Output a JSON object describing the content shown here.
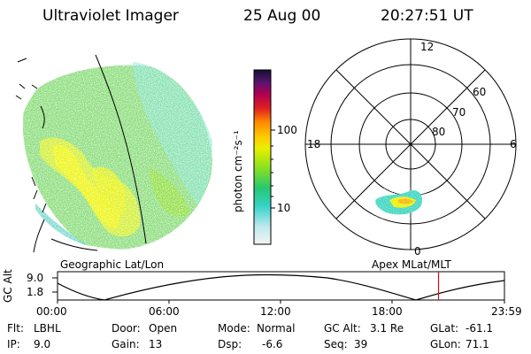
{
  "header": {
    "instrument": "Ultraviolet Imager",
    "date": "25 Aug 00",
    "time": "20:27:51 UT"
  },
  "colorbar": {
    "unit_label": "photon cm⁻²s⁻¹",
    "ticks": [
      "100",
      "10"
    ]
  },
  "polar_plot": {
    "mlt_labels": {
      "top": "12",
      "left": "18",
      "right": "6",
      "bottom": "0"
    },
    "lat_labels": [
      "60",
      "70",
      "80"
    ]
  },
  "map_labels": {
    "left": "Geographic Lat/Lon",
    "right": "Apex MLat/MLT"
  },
  "altitude_plot": {
    "ylabel": "GC Alt",
    "yticks": [
      "9.0",
      "1.8"
    ],
    "xticks": [
      "00:00",
      "06:00",
      "12:00",
      "18:00",
      "23:59"
    ],
    "current_time_hours": 20.46
  },
  "status": {
    "flt_label": "Flt:",
    "flt_value": "LBHL",
    "ip_label": "IP:",
    "ip_value": "9.0",
    "door_label": "Door:",
    "door_value": "Open",
    "gain_label": "Gain:",
    "gain_value": "13",
    "mode_label": "Mode:",
    "mode_value": "Normal",
    "dsp_label": "Dsp:",
    "dsp_value": "-6.6",
    "gcalt_label": "GC Alt:",
    "gcalt_value": "3.1 Re",
    "seq_label": "Seq:",
    "seq_value": "39",
    "glat_label": "GLat:",
    "glat_value": "-61.1",
    "glon_label": "GLon:",
    "glon_value": "71.1"
  },
  "colors": {
    "red_marker": "#d01010",
    "lines": "#000000"
  }
}
